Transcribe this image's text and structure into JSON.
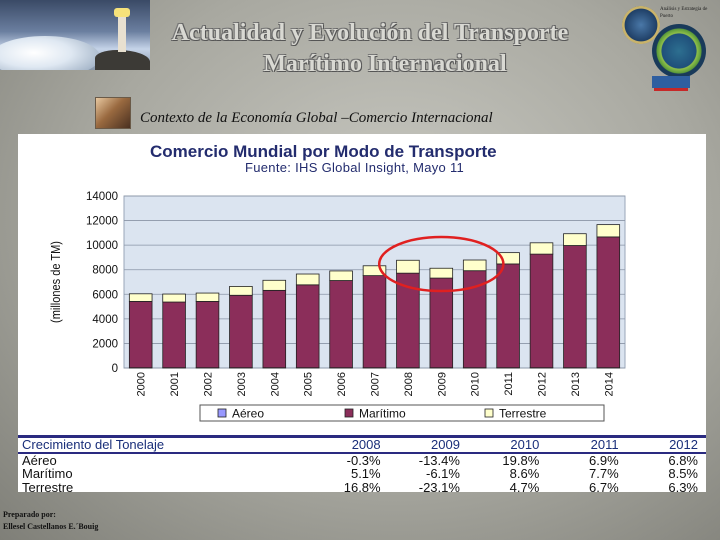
{
  "header": {
    "title_line1": "Actualidad y Evolución del Transporte",
    "title_line2": "Marítimo Internacional",
    "subtitle": "Contexto de la Economía Global –Comercio Internacional",
    "logo_text": "Análisis y Estrategia de Puerto"
  },
  "chart_data": {
    "type": "bar",
    "stacked": true,
    "title": "Comercio Mundial por Modo de Transporte",
    "subtitle": "Fuente: IHS Global Insight, Mayo 11",
    "ylabel": "(millones de TM)",
    "ylim": [
      0,
      14000
    ],
    "yticks": [
      0,
      2000,
      4000,
      6000,
      8000,
      10000,
      12000,
      14000
    ],
    "grid": true,
    "legend_position": "bottom",
    "categories": [
      "2000",
      "2001",
      "2002",
      "2003",
      "2004",
      "2005",
      "2006",
      "2007",
      "2008",
      "2009",
      "2010",
      "2011",
      "2012",
      "2013",
      "2014"
    ],
    "series": [
      {
        "name": "Aéreo",
        "color": "#9999ff",
        "values": [
          20,
          20,
          20,
          20,
          20,
          20,
          20,
          20,
          20,
          20,
          20,
          20,
          20,
          20,
          20
        ]
      },
      {
        "name": "Marítimo",
        "color": "#8b2e5a",
        "values": [
          5400,
          5350,
          5400,
          5900,
          6300,
          6750,
          7100,
          7500,
          7700,
          7300,
          7900,
          8450,
          9250,
          9950,
          10650
        ]
      },
      {
        "name": "Terrestre",
        "color": "#ffffcc",
        "values": [
          620,
          650,
          680,
          720,
          820,
          880,
          780,
          800,
          1050,
          800,
          870,
          920,
          920,
          960,
          1000
        ]
      }
    ],
    "highlight": {
      "categories": [
        "2008",
        "2009",
        "2010"
      ],
      "shape": "ellipse",
      "color": "#e02020"
    }
  },
  "growth_table": {
    "header": [
      "Crecimiento del Tonelaje",
      "2008",
      "2009",
      "2010",
      "2011",
      "2012"
    ],
    "rows": [
      [
        "Aéreo",
        "-0.3%",
        "-13.4%",
        "19.8%",
        "6.9%",
        "6.8%"
      ],
      [
        "Marítimo",
        "5.1%",
        "-6.1%",
        "8.6%",
        "7.7%",
        "8.5%"
      ],
      [
        "Terrestre",
        "16.8%",
        "-23.1%",
        "4.7%",
        "6.7%",
        "6.3%"
      ]
    ]
  },
  "footer": {
    "prepared_by": "Preparado por:",
    "author": "Ellesel Castellanos E.´Bouig"
  }
}
